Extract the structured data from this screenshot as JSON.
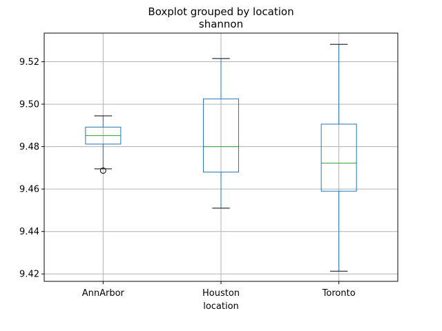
{
  "chart_data": {
    "type": "box",
    "title": "Boxplot grouped by location",
    "subtitle": "shannon",
    "xlabel": "location",
    "ylabel": "",
    "ylim": [
      9.4165,
      9.5335
    ],
    "yticks": [
      "9.42",
      "9.44",
      "9.46",
      "9.48",
      "9.50",
      "9.52"
    ],
    "grid": true,
    "categories": [
      "AnnArbor",
      "Houston",
      "Toronto"
    ],
    "boxes": [
      {
        "category": "AnnArbor",
        "whisker_low": 9.4695,
        "q1": 9.4812,
        "median": 9.4852,
        "q3": 9.4892,
        "whisker_high": 9.4945,
        "outliers": [
          9.4687
        ]
      },
      {
        "category": "Houston",
        "whisker_low": 9.451,
        "q1": 9.468,
        "median": 9.48,
        "q3": 9.5025,
        "whisker_high": 9.5215,
        "outliers": []
      },
      {
        "category": "Toronto",
        "whisker_low": 9.4213,
        "q1": 9.459,
        "median": 9.4722,
        "q3": 9.4906,
        "whisker_high": 9.5282,
        "outliers": []
      }
    ],
    "colors": {
      "box": "#1f77b4",
      "median": "#2ca02c",
      "whisker_cap": "#000000",
      "outlier": "#000000",
      "grid": "#b0b0b0"
    }
  }
}
